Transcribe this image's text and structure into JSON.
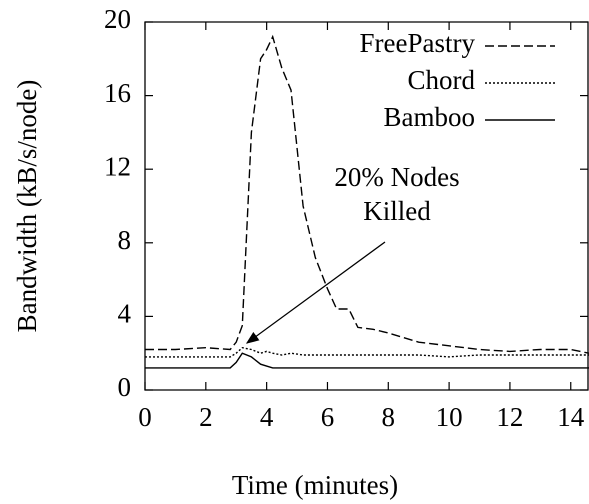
{
  "chart_data": {
    "type": "line",
    "xlabel": "Time (minutes)",
    "ylabel": "Bandwidth (kB/s/node)",
    "annotation": [
      "20% Nodes",
      "Killed"
    ],
    "x": [
      0,
      1,
      2,
      2.8,
      3,
      3.2,
      3.5,
      3.8,
      4,
      4.2,
      4.5,
      4.8,
      5.2,
      5.6,
      6,
      6.3,
      6.7,
      7,
      7.5,
      8,
      9,
      10,
      11,
      12,
      13,
      14,
      14.6
    ],
    "series": [
      {
        "name": "FreePastry",
        "color": "#000000",
        "dash": "9,4",
        "values": [
          2.2,
          2.2,
          2.3,
          2.2,
          2.6,
          3.5,
          14,
          18,
          18.5,
          19.2,
          17.5,
          16.3,
          10,
          7.2,
          5.5,
          4.4,
          4.4,
          3.4,
          3.3,
          3.1,
          2.6,
          2.4,
          2.2,
          2.1,
          2.2,
          2.2,
          2.0
        ]
      },
      {
        "name": "Chord",
        "color": "#000000",
        "dash": "2,2",
        "values": [
          1.8,
          1.8,
          1.8,
          1.8,
          2.0,
          2.3,
          2.2,
          2.0,
          2.1,
          2.0,
          1.9,
          2.0,
          1.9,
          1.9,
          1.9,
          1.9,
          1.9,
          1.9,
          1.9,
          1.9,
          1.9,
          1.8,
          1.9,
          1.9,
          1.9,
          1.9,
          1.9
        ]
      },
      {
        "name": "Bamboo",
        "color": "#000000",
        "dash": "none",
        "values": [
          1.2,
          1.2,
          1.2,
          1.2,
          1.5,
          2.0,
          1.8,
          1.4,
          1.3,
          1.2,
          1.2,
          1.2,
          1.2,
          1.2,
          1.2,
          1.2,
          1.2,
          1.2,
          1.2,
          1.2,
          1.2,
          1.2,
          1.2,
          1.2,
          1.2,
          1.2,
          1.2
        ]
      }
    ],
    "xlim": [
      0,
      14.6
    ],
    "ylim": [
      0,
      20
    ],
    "xticks": [
      0,
      2,
      4,
      6,
      8,
      10,
      12,
      14
    ],
    "yticks": [
      0,
      4,
      8,
      12,
      16,
      20
    ],
    "legend": "upper right"
  }
}
